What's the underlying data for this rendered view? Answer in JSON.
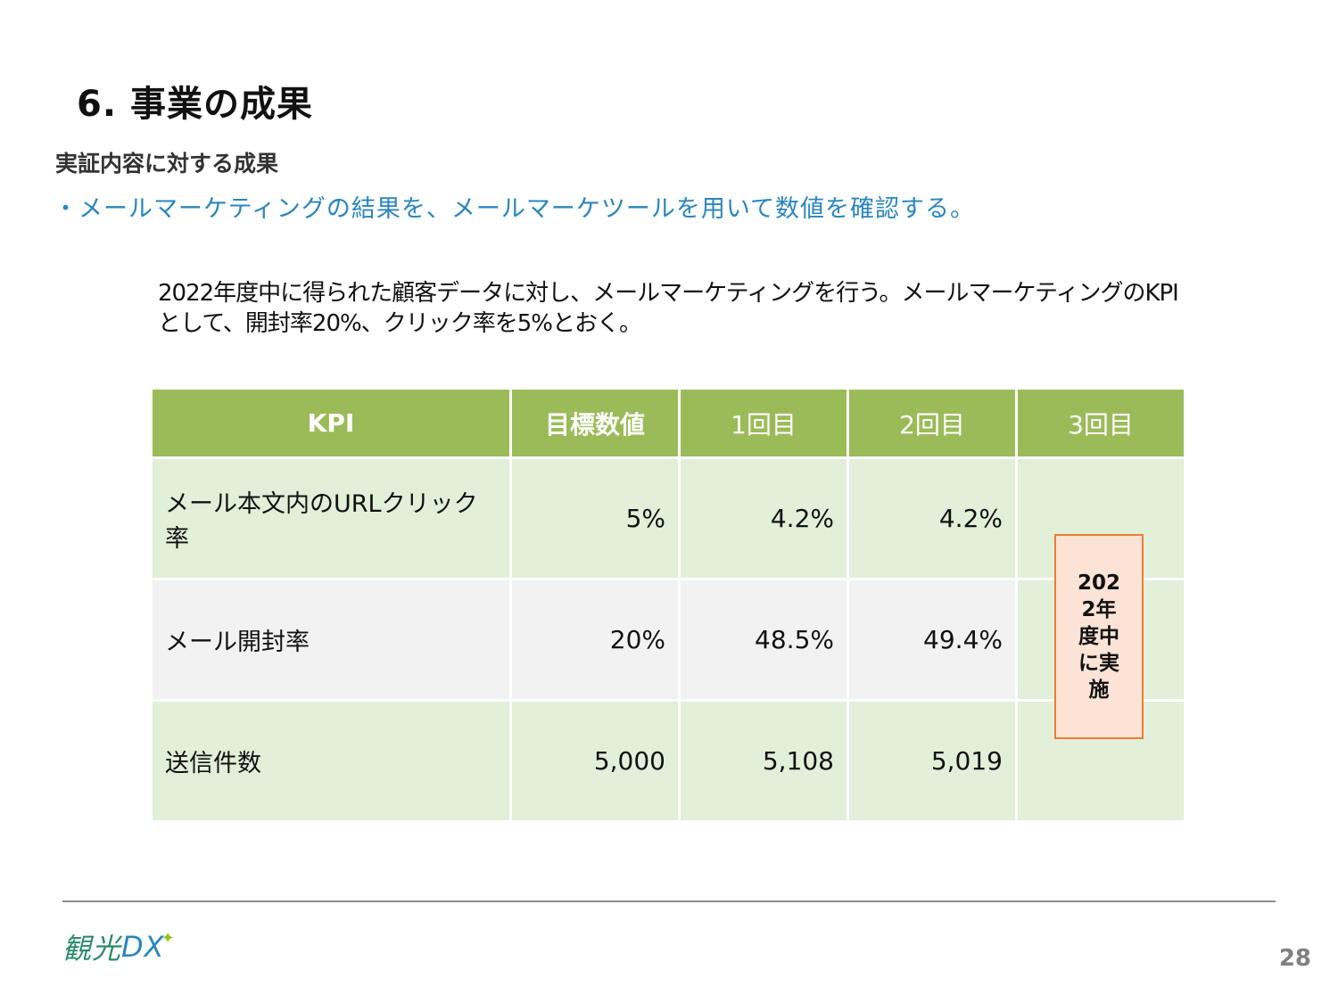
{
  "slide": {
    "title": "6. 事業の成果",
    "subtitle": "実証内容に対する成果",
    "bullet": "・メールマーケティングの結果を、メールマーケツールを用いて数値を確認する。",
    "description": "2022年度中に得られた顧客データに対し、メールマーケティングを行う。メールマーケティングのKPIとして、開封率20%、クリック率を5%とおく。"
  },
  "table": {
    "headers": [
      "KPI",
      "目標数値",
      "1回目",
      "2回目",
      "3回目"
    ],
    "rows": [
      {
        "kpi": "メール本文内のURLクリック率",
        "target": "5%",
        "first": "4.2%",
        "second": "4.2%"
      },
      {
        "kpi": "メール開封率",
        "target": "20%",
        "first": "48.5%",
        "second": "49.4%"
      },
      {
        "kpi": "送信件数",
        "target": "5,000",
        "first": "5,108",
        "second": "5,019"
      }
    ],
    "third_note": "2022年度中に実施"
  },
  "footer": {
    "logo_kanko": "観光",
    "logo_dx": "DX",
    "page_number": "28"
  }
}
